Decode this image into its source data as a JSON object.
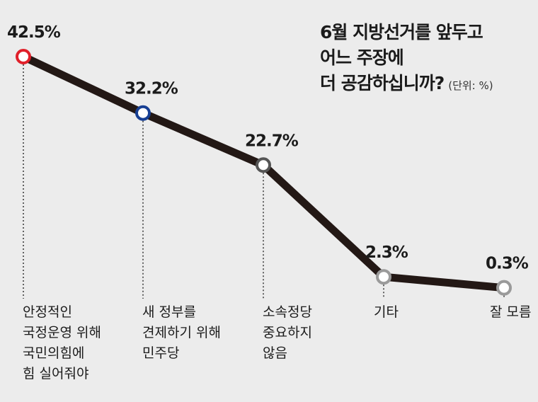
{
  "chart_data": {
    "type": "line",
    "title_lines": [
      "6월 지방선거를 앞두고",
      "어느 주장에",
      "더 공감하십니까?"
    ],
    "unit": "(단위: %)",
    "categories": [
      [
        "안정적인",
        "국정운영 위해",
        "국민의힘에",
        "힘 실어줘야"
      ],
      [
        "새 정부를",
        "견제하기 위해",
        "민주당"
      ],
      [
        "소속정당",
        "중요하지",
        "않음"
      ],
      [
        "기타"
      ],
      [
        "잘 모름"
      ]
    ],
    "values": [
      42.5,
      32.2,
      22.7,
      2.3,
      0.3
    ],
    "value_labels": [
      "42.5%",
      "32.2%",
      "22.7%",
      "2.3%",
      "0.3%"
    ],
    "marker_colors": [
      "#e0202a",
      "#173f93",
      "#555555",
      "#9a9a9a",
      "#9a9a9a"
    ],
    "line_color": "#231815",
    "ylim": [
      0,
      45
    ]
  }
}
